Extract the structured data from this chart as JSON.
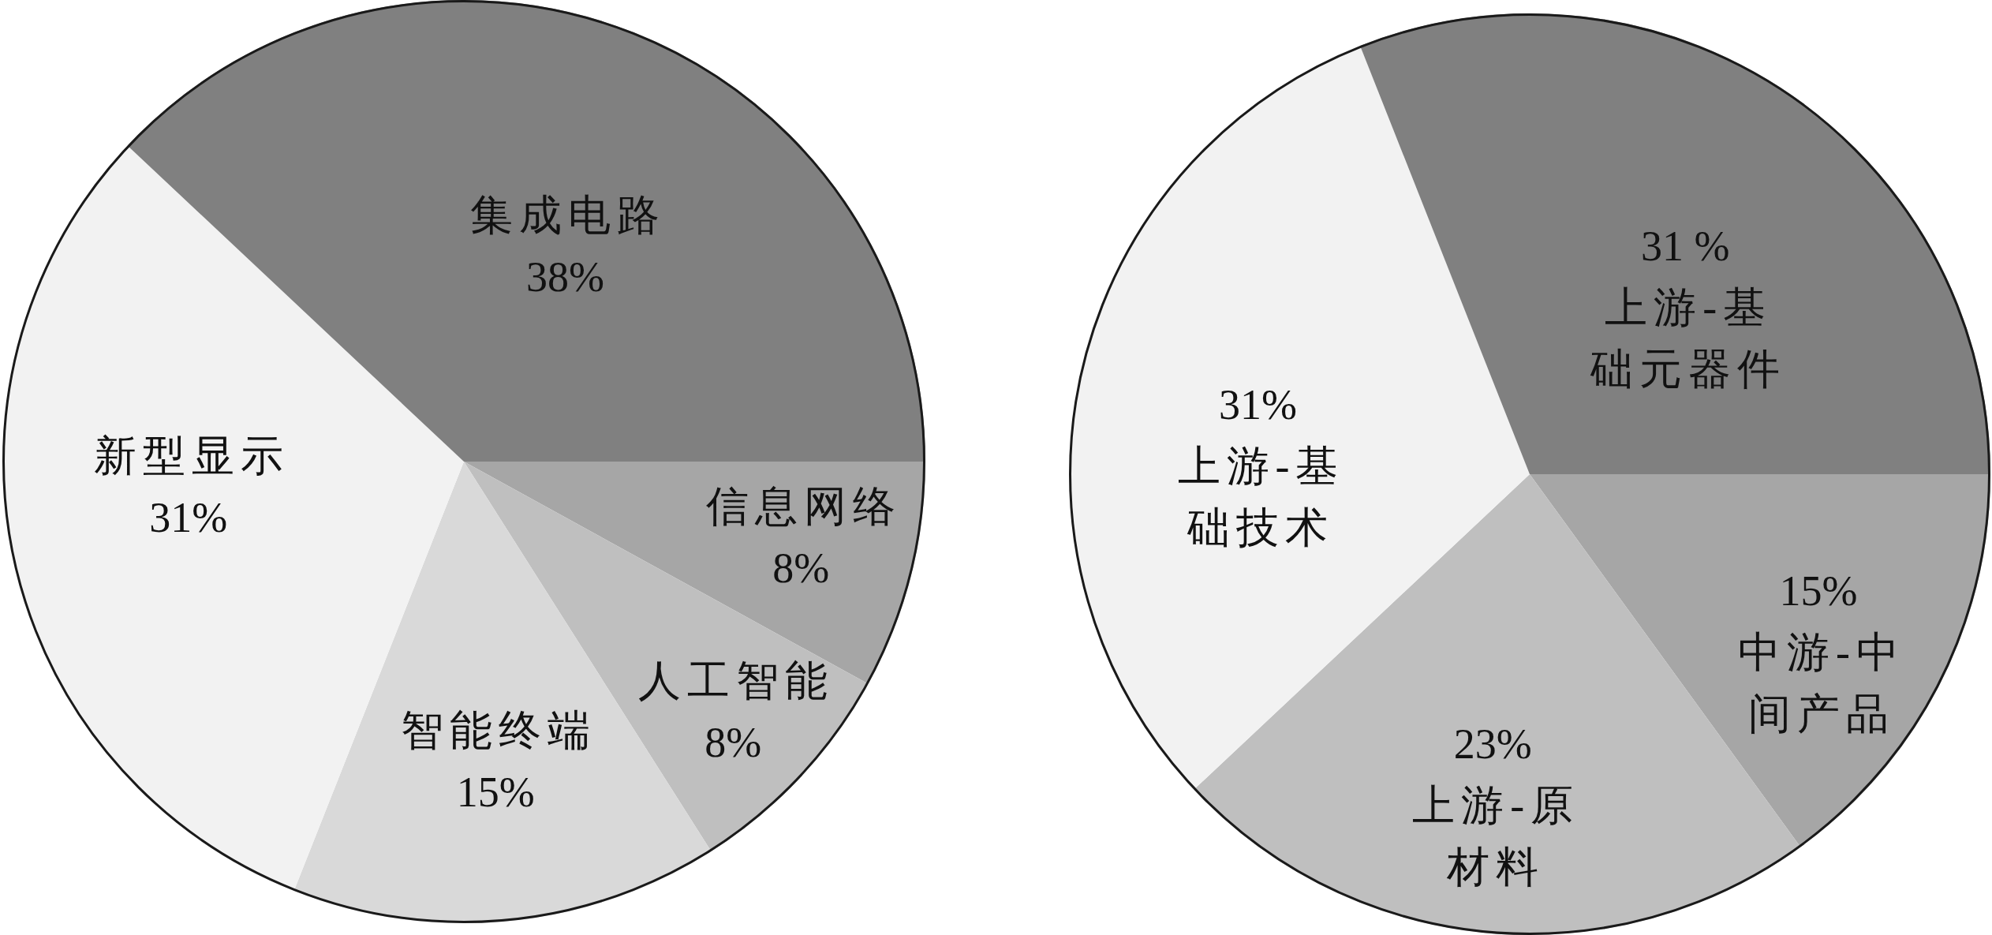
{
  "chart_data": [
    {
      "type": "pie",
      "categories": [
        "信息网络",
        "人工智能",
        "智能终端",
        "新型显示",
        "集成电路"
      ],
      "values": [
        8,
        8,
        15,
        31,
        38
      ],
      "colors": [
        "#a6a6a6",
        "#bfbfbf",
        "#d9d9d9",
        "#f2f2f2",
        "#808080"
      ],
      "value_labels": [
        "8%",
        "8%",
        "15%",
        "31%",
        "38%"
      ]
    },
    {
      "type": "pie",
      "categories": [
        "中游-中间产品",
        "上游-原材料",
        "上游-基础技术",
        "上游-基础元器件"
      ],
      "values": [
        15,
        23,
        31,
        31
      ],
      "colors": [
        "#a6a6a6",
        "#bfbfbf",
        "#f2f2f2",
        "#808080"
      ],
      "value_labels": [
        "15%",
        "23%",
        "31%",
        "31 %"
      ]
    }
  ]
}
